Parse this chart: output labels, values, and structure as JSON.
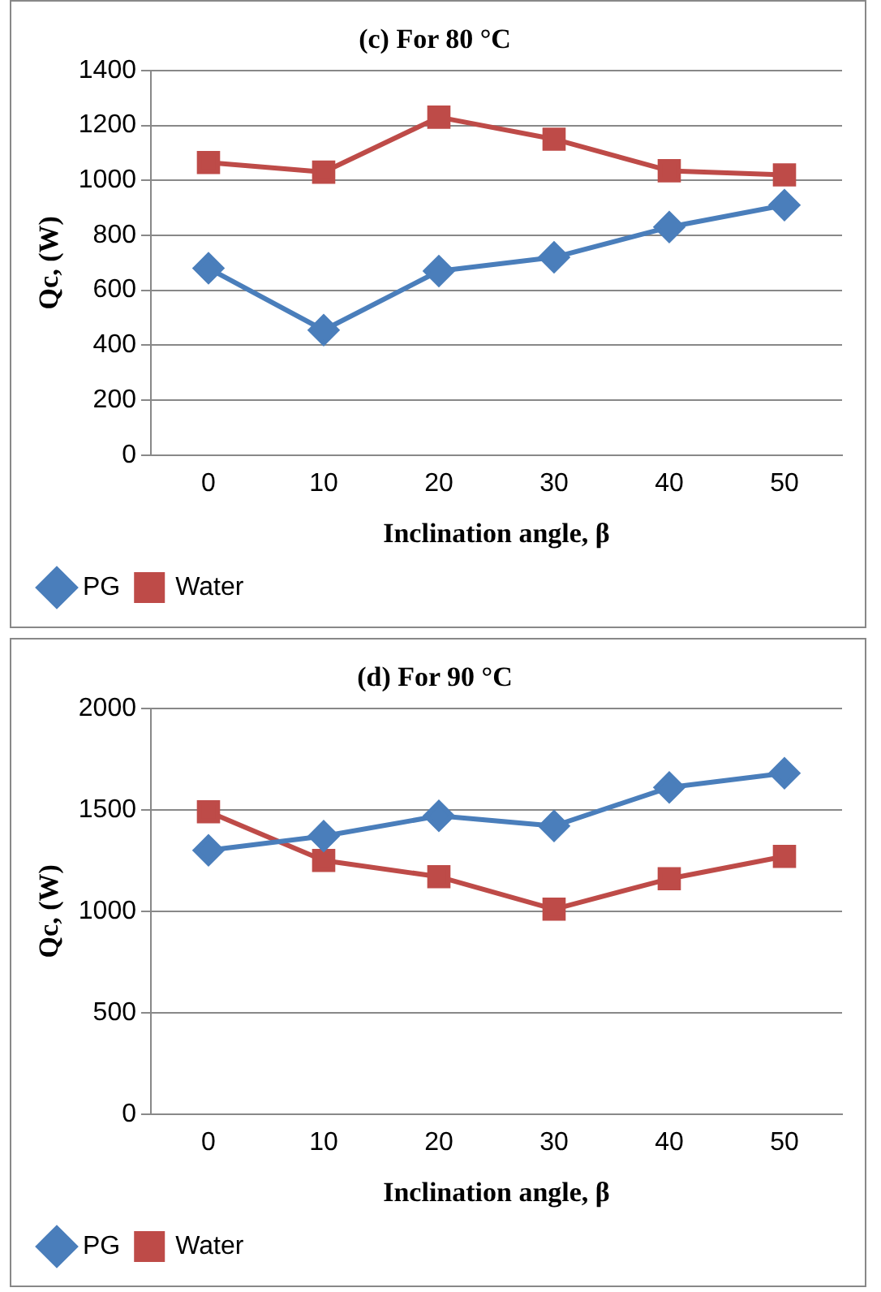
{
  "chart_data": [
    {
      "type": "line",
      "title": "(c) For 80 °C",
      "xlabel": "Inclination angle, β",
      "ylabel": "Qc, (W)",
      "categories": [
        "0",
        "10",
        "20",
        "30",
        "40",
        "50"
      ],
      "series": [
        {
          "name": "PG",
          "color": "#4a7ebb",
          "marker": "diamond",
          "values": [
            680,
            455,
            670,
            720,
            830,
            910
          ]
        },
        {
          "name": "Water",
          "color": "#be4b48",
          "marker": "square",
          "values": [
            1065,
            1030,
            1230,
            1150,
            1035,
            1020
          ]
        }
      ],
      "ylim": [
        0,
        1400
      ],
      "yticks": [
        0,
        200,
        400,
        600,
        800,
        1000,
        1200,
        1400
      ],
      "grid": "y",
      "legend": "bottom left"
    },
    {
      "type": "line",
      "title": "(d) For 90 °C",
      "xlabel": "Inclination angle, β",
      "ylabel": "Qc, (W)",
      "categories": [
        "0",
        "10",
        "20",
        "30",
        "40",
        "50"
      ],
      "series": [
        {
          "name": "PG",
          "color": "#4a7ebb",
          "marker": "diamond",
          "values": [
            1300,
            1370,
            1470,
            1420,
            1610,
            1680
          ]
        },
        {
          "name": "Water",
          "color": "#be4b48",
          "marker": "square",
          "values": [
            1490,
            1250,
            1170,
            1010,
            1160,
            1270
          ]
        }
      ],
      "ylim": [
        0,
        2000
      ],
      "yticks": [
        0,
        500,
        1000,
        1500,
        2000
      ],
      "grid": "y",
      "legend": "bottom left"
    }
  ]
}
